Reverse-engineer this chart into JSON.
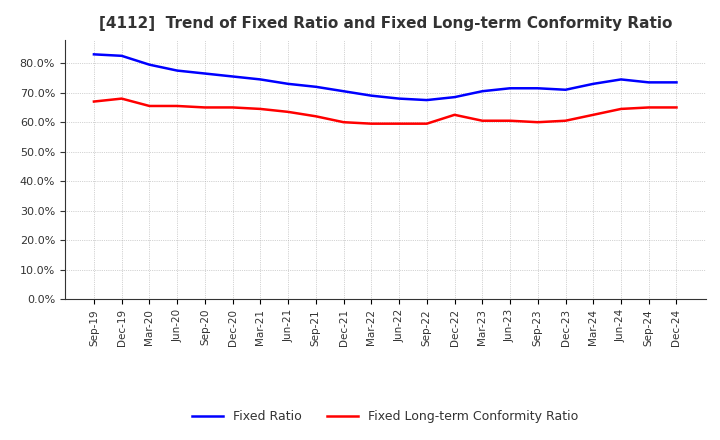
{
  "title": "[4112]  Trend of Fixed Ratio and Fixed Long-term Conformity Ratio",
  "x_labels": [
    "Sep-19",
    "Dec-19",
    "Mar-20",
    "Jun-20",
    "Sep-20",
    "Dec-20",
    "Mar-21",
    "Jun-21",
    "Sep-21",
    "Dec-21",
    "Mar-22",
    "Jun-22",
    "Sep-22",
    "Dec-22",
    "Mar-23",
    "Jun-23",
    "Sep-23",
    "Dec-23",
    "Mar-24",
    "Jun-24",
    "Sep-24",
    "Dec-24"
  ],
  "fixed_ratio": [
    83.0,
    82.5,
    79.5,
    77.5,
    76.5,
    75.5,
    74.5,
    73.0,
    72.0,
    70.5,
    69.0,
    68.0,
    67.5,
    68.5,
    70.5,
    71.5,
    71.5,
    71.0,
    73.0,
    74.5,
    73.5,
    73.5
  ],
  "fixed_lt_ratio": [
    67.0,
    68.0,
    65.5,
    65.5,
    65.0,
    65.0,
    64.5,
    63.5,
    62.0,
    60.0,
    59.5,
    59.5,
    59.5,
    62.5,
    60.5,
    60.5,
    60.0,
    60.5,
    62.5,
    64.5,
    65.0,
    65.0
  ],
  "fixed_ratio_color": "#0000FF",
  "fixed_lt_ratio_color": "#FF0000",
  "ylim": [
    0,
    88
  ],
  "yticks": [
    0,
    10,
    20,
    30,
    40,
    50,
    60,
    70,
    80
  ],
  "background_color": "#FFFFFF",
  "grid_color": "#AAAAAA",
  "title_fontsize": 11,
  "legend_fixed_ratio": "Fixed Ratio",
  "legend_fixed_lt_ratio": "Fixed Long-term Conformity Ratio"
}
